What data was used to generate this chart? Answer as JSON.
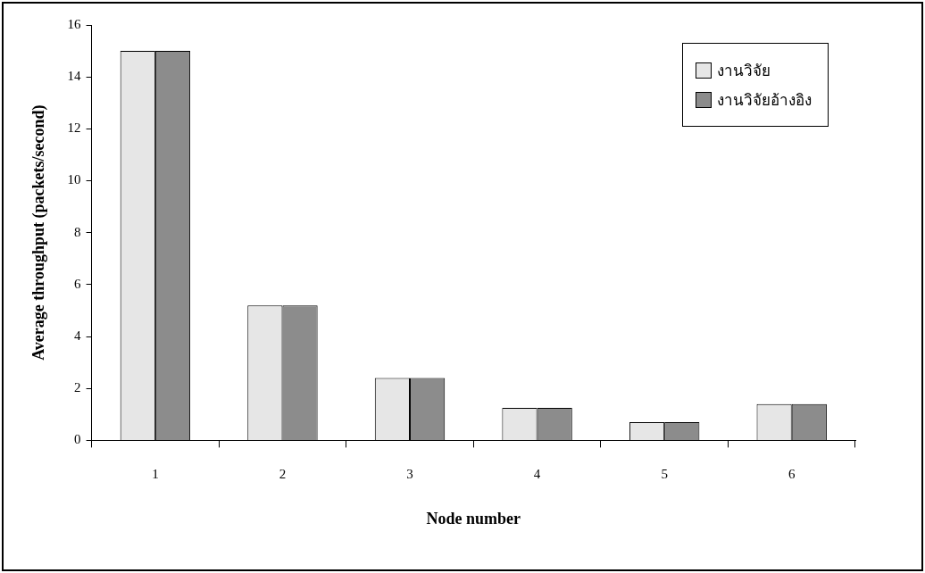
{
  "chart_data": {
    "type": "bar",
    "xlabel": "Node number",
    "ylabel": "Average throughput (packets/second)",
    "categories": [
      "1",
      "2",
      "3",
      "4",
      "5",
      "6"
    ],
    "series": [
      {
        "name": "งานวิจัย",
        "color": "#e6e6e6",
        "values": [
          15,
          5.2,
          2.4,
          1.25,
          0.7,
          1.4
        ]
      },
      {
        "name": "งานวิจัยอ้างอิง",
        "color": "#8c8c8c",
        "values": [
          15,
          5.2,
          2.4,
          1.25,
          0.7,
          1.4
        ]
      }
    ],
    "ylim": [
      0,
      16
    ],
    "yticks": [
      0,
      2,
      4,
      6,
      8,
      10,
      12,
      14,
      16
    ],
    "grid": false,
    "legend": "top right"
  }
}
